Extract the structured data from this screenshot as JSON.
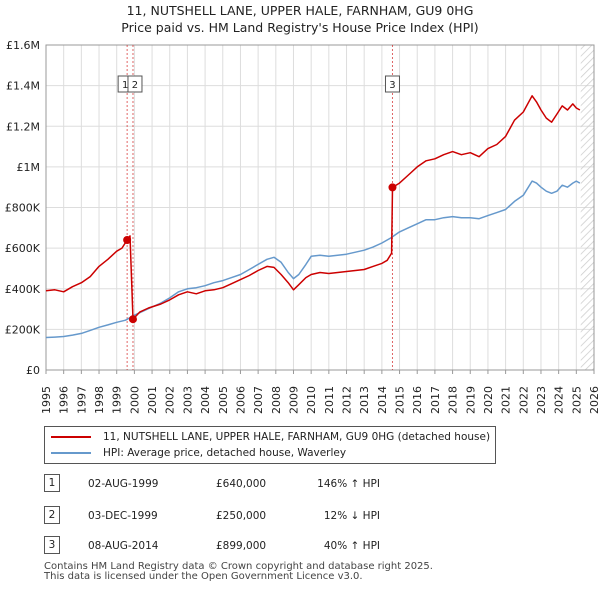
{
  "title_line1": "11, NUTSHELL LANE, UPPER HALE, FARNHAM, GU9 0HG",
  "title_line2": "Price paid vs. HM Land Registry's House Price Index (HPI)",
  "colors": {
    "property": "#cc0000",
    "hpi": "#6699cc",
    "future_hatch": "#cccccc",
    "marker_line": "#cc0000"
  },
  "chart_data": {
    "type": "line",
    "ylim": [
      0,
      1600000
    ],
    "xlim": [
      1995,
      2026
    ],
    "yticks": [
      0,
      200000,
      400000,
      600000,
      800000,
      1000000,
      1200000,
      1400000,
      1600000
    ],
    "ytick_labels": [
      "£0",
      "£200K",
      "£400K",
      "£600K",
      "£800K",
      "£1M",
      "£1.2M",
      "£1.4M",
      "£1.6M"
    ],
    "xticks": [
      1995,
      1996,
      1997,
      1998,
      1999,
      2000,
      2001,
      2002,
      2003,
      2004,
      2005,
      2006,
      2007,
      2008,
      2009,
      2010,
      2011,
      2012,
      2013,
      2014,
      2015,
      2016,
      2017,
      2018,
      2019,
      2020,
      2021,
      2022,
      2023,
      2024,
      2025,
      2026
    ],
    "xtick_labels": [
      "1995",
      "1996",
      "1997",
      "1998",
      "1999",
      "2000",
      "2001",
      "2002",
      "2003",
      "2004",
      "2005",
      "2006",
      "2007",
      "2008",
      "2009",
      "2010",
      "2011",
      "2012",
      "2013",
      "2014",
      "2015",
      "2016",
      "2017",
      "2018",
      "2019",
      "2020",
      "2021",
      "2022",
      "2023",
      "2024",
      "2025",
      "2026"
    ],
    "future_start": 2025.25,
    "series": [
      {
        "name": "11, NUTSHELL LANE, UPPER HALE, FARNHAM, GU9 0HG (detached house)",
        "x": [
          1995.0,
          1995.5,
          1996.0,
          1996.5,
          1997.0,
          1997.5,
          1998.0,
          1998.5,
          1999.0,
          1999.3,
          1999.59,
          1999.75,
          1999.92,
          2000.3,
          2000.8,
          2001.5,
          2002.0,
          2002.5,
          2003.0,
          2003.5,
          2004.0,
          2004.5,
          2005.0,
          2005.5,
          2006.0,
          2006.5,
          2007.0,
          2007.5,
          2007.9,
          2008.3,
          2008.7,
          2009.0,
          2009.3,
          2009.7,
          2010.0,
          2010.5,
          2011.0,
          2011.5,
          2012.0,
          2012.5,
          2013.0,
          2013.5,
          2014.0,
          2014.3,
          2014.55,
          2014.6,
          2015.0,
          2015.5,
          2016.0,
          2016.5,
          2017.0,
          2017.5,
          2018.0,
          2018.5,
          2019.0,
          2019.5,
          2020.0,
          2020.5,
          2021.0,
          2021.5,
          2022.0,
          2022.5,
          2022.75,
          2023.0,
          2023.3,
          2023.6,
          2023.9,
          2024.2,
          2024.5,
          2024.8,
          2025.0,
          2025.2
        ],
        "values": [
          390000,
          395000,
          385000,
          410000,
          430000,
          460000,
          510000,
          545000,
          585000,
          600000,
          640000,
          660000,
          250000,
          285000,
          305000,
          325000,
          345000,
          370000,
          385000,
          375000,
          390000,
          395000,
          405000,
          425000,
          445000,
          465000,
          490000,
          510000,
          505000,
          470000,
          430000,
          395000,
          420000,
          455000,
          470000,
          480000,
          475000,
          480000,
          485000,
          490000,
          495000,
          510000,
          525000,
          540000,
          575000,
          899000,
          920000,
          960000,
          1000000,
          1030000,
          1040000,
          1060000,
          1075000,
          1060000,
          1070000,
          1050000,
          1090000,
          1110000,
          1150000,
          1230000,
          1270000,
          1350000,
          1320000,
          1280000,
          1240000,
          1220000,
          1260000,
          1300000,
          1280000,
          1310000,
          1290000,
          1280000
        ]
      },
      {
        "name": "HPI: Average price, detached house, Waverley",
        "x": [
          1995.0,
          1995.5,
          1996.0,
          1996.5,
          1997.0,
          1997.5,
          1998.0,
          1998.5,
          1999.0,
          1999.5,
          2000.0,
          2000.5,
          2001.0,
          2001.5,
          2002.0,
          2002.5,
          2003.0,
          2003.5,
          2004.0,
          2004.5,
          2005.0,
          2005.5,
          2006.0,
          2006.5,
          2007.0,
          2007.5,
          2007.9,
          2008.3,
          2008.7,
          2009.0,
          2009.3,
          2009.7,
          2010.0,
          2010.5,
          2011.0,
          2011.5,
          2012.0,
          2012.5,
          2013.0,
          2013.5,
          2014.0,
          2014.5,
          2015.0,
          2015.5,
          2016.0,
          2016.5,
          2017.0,
          2017.5,
          2018.0,
          2018.5,
          2019.0,
          2019.5,
          2020.0,
          2020.5,
          2021.0,
          2021.5,
          2022.0,
          2022.5,
          2022.75,
          2023.0,
          2023.3,
          2023.6,
          2023.9,
          2024.2,
          2024.5,
          2024.8,
          2025.0,
          2025.2
        ],
        "values": [
          160000,
          162000,
          165000,
          172000,
          180000,
          195000,
          210000,
          222000,
          235000,
          245000,
          270000,
          290000,
          310000,
          330000,
          355000,
          385000,
          400000,
          405000,
          415000,
          430000,
          440000,
          455000,
          470000,
          495000,
          520000,
          545000,
          555000,
          530000,
          480000,
          450000,
          470000,
          520000,
          560000,
          565000,
          560000,
          565000,
          570000,
          580000,
          590000,
          605000,
          625000,
          650000,
          680000,
          700000,
          720000,
          740000,
          740000,
          750000,
          755000,
          750000,
          750000,
          745000,
          760000,
          775000,
          790000,
          830000,
          860000,
          930000,
          920000,
          900000,
          880000,
          870000,
          880000,
          910000,
          900000,
          920000,
          930000,
          920000
        ]
      }
    ],
    "sales": [
      {
        "label": "1",
        "x": 1999.59,
        "y": 640000
      },
      {
        "label": "2",
        "x": 1999.92,
        "y": 250000
      },
      {
        "label": "3",
        "x": 2014.6,
        "y": 899000
      }
    ]
  },
  "legend": {
    "property_label": "11, NUTSHELL LANE, UPPER HALE, FARNHAM, GU9 0HG (detached house)",
    "hpi_label": "HPI: Average price, detached house, Waverley"
  },
  "transactions": [
    {
      "num": "1",
      "date": "02-AUG-1999",
      "price": "£640,000",
      "hpi": "146% ↑ HPI"
    },
    {
      "num": "2",
      "date": "03-DEC-1999",
      "price": "£250,000",
      "hpi": "12% ↓ HPI"
    },
    {
      "num": "3",
      "date": "08-AUG-2014",
      "price": "£899,000",
      "hpi": "40% ↑ HPI"
    }
  ],
  "footer_line1": "Contains HM Land Registry data © Crown copyright and database right 2025.",
  "footer_line2": "This data is licensed under the Open Government Licence v3.0."
}
